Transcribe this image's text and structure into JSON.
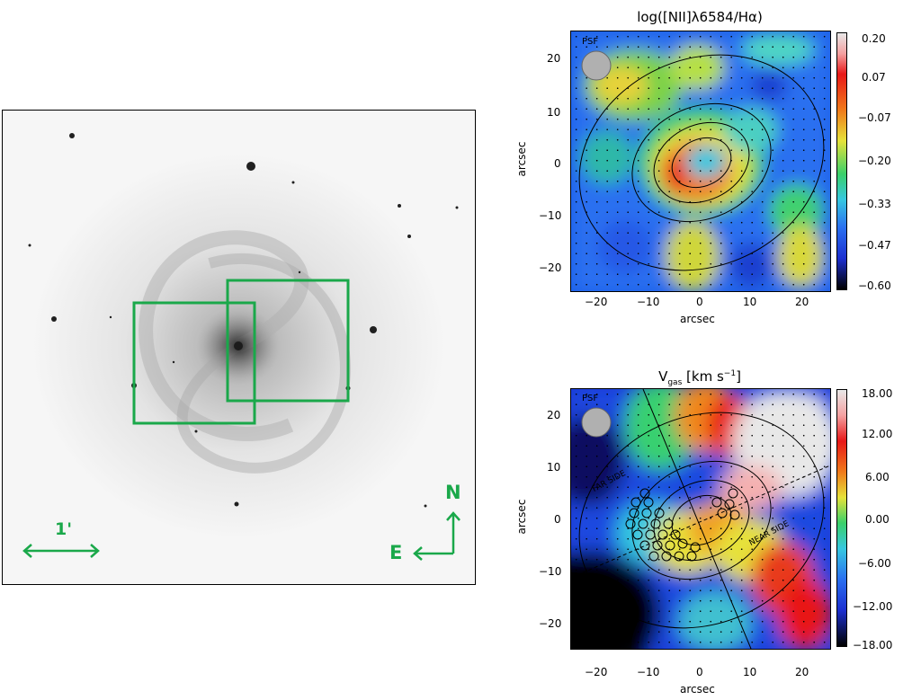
{
  "optical_image": {
    "scale_label": "1'",
    "compass": {
      "north": "N",
      "east": "E"
    },
    "box_color": "#1aa84a"
  },
  "nii_map": {
    "title": "log([NII]λ6584/Hα)",
    "xlabel": "arcsec",
    "ylabel": "arcsec",
    "x_ticks": [
      "−20",
      "−10",
      "0",
      "10",
      "20"
    ],
    "y_ticks": [
      "20",
      "10",
      "0",
      "−10",
      "−20"
    ],
    "psf_label": "PSF",
    "colorbar_ticks": [
      "0.20",
      "0.07",
      "−0.07",
      "−0.20",
      "−0.33",
      "−0.47",
      "−0.60"
    ],
    "colorbar_range": [
      -0.6,
      0.2
    ]
  },
  "vgas_map": {
    "title": "V",
    "title_sub": "gas",
    "title_unit": "[km s",
    "title_exp": "−1",
    "title_close": "]",
    "xlabel": "arcsec",
    "ylabel": "arcsec",
    "x_ticks": [
      "−20",
      "−10",
      "0",
      "10",
      "20"
    ],
    "y_ticks": [
      "20",
      "10",
      "0",
      "−10",
      "−20"
    ],
    "psf_label": "PSF",
    "far_side_label": "FAR SIDE",
    "near_side_label": "NEAR SIDE",
    "colorbar_ticks": [
      "18.00",
      "12.00",
      "6.00",
      "0.00",
      "−6.00",
      "−12.00",
      "−18.00"
    ],
    "colorbar_range": [
      -18.0,
      18.0
    ]
  }
}
